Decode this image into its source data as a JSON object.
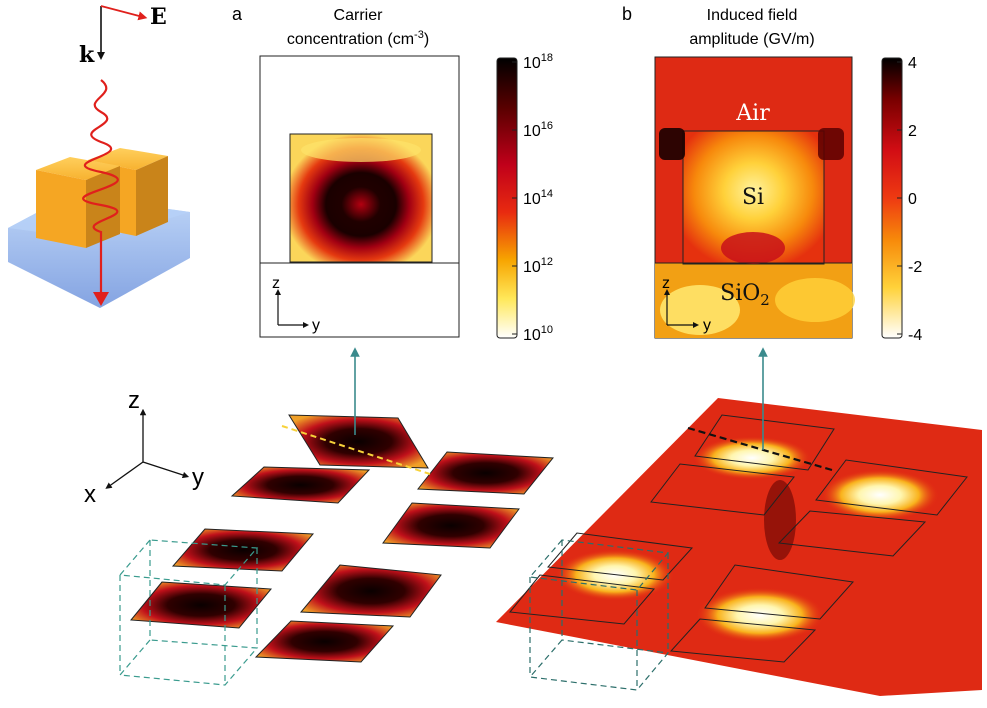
{
  "incident": {
    "e_label": "E",
    "k_label": "k"
  },
  "panel_a": {
    "letter": "a",
    "title_line1": "Carrier",
    "title_line2": "concentration (cm",
    "title_sup": "-3",
    "title_tail": ")",
    "axis_z": "z",
    "axis_y": "y",
    "colorbar": {
      "colors": [
        "#000000",
        "#5a0000",
        "#c0001a",
        "#e82a10",
        "#f7a400",
        "#ffe85a",
        "#ffffff"
      ],
      "ticks": [
        {
          "base": "10",
          "exp": "18"
        },
        {
          "base": "10",
          "exp": "16"
        },
        {
          "base": "10",
          "exp": "14"
        },
        {
          "base": "10",
          "exp": "12"
        },
        {
          "base": "10",
          "exp": "10"
        }
      ]
    }
  },
  "panel_b": {
    "letter": "b",
    "title_line1": "Induced field",
    "title_line2": "amplitude (GV/m)",
    "region_air": "Air",
    "region_si": "Si",
    "region_sio2": "SiO",
    "region_sio2_sub": "2",
    "axis_z": "z",
    "axis_y": "y",
    "colorbar": {
      "colors": [
        "#000000",
        "#7a0000",
        "#d20d14",
        "#ee3a12",
        "#f78a0a",
        "#ffd23a",
        "#ffffff"
      ],
      "ticks": [
        "4",
        "2",
        "0",
        "-2",
        "-4"
      ]
    }
  },
  "axes3d": {
    "z": "z",
    "x": "x",
    "y": "y"
  },
  "colors": {
    "arrow_teal": "#3a8a8c",
    "wave_red": "#e0201c",
    "cube_orange": "#f5a623",
    "substrate_blue": "#5b8fe0"
  }
}
